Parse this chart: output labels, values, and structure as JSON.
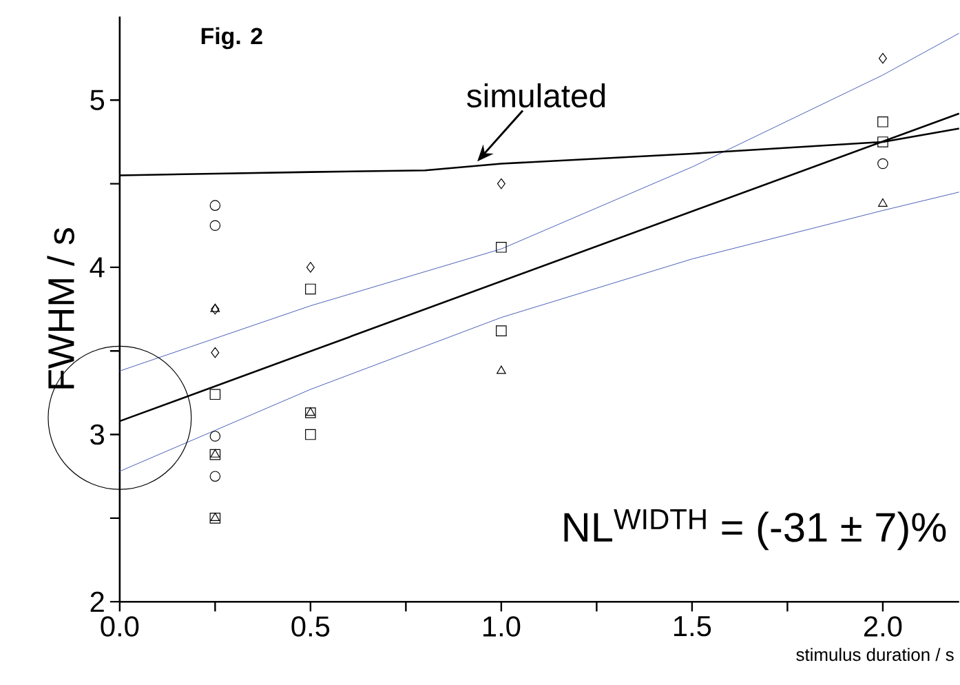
{
  "chart_data": {
    "type": "scatter",
    "title": "Fig. 2",
    "xlabel": "stimulus duration / s",
    "ylabel": "FWHM  / s",
    "xlim": [
      0,
      2.2
    ],
    "ylim": [
      2,
      5.5
    ],
    "xticks": [
      {
        "value": 0,
        "label": "0.0"
      },
      {
        "value": 0.25,
        "label": null
      },
      {
        "value": 0.5,
        "label": "0.5"
      },
      {
        "value": 0.75,
        "label": null
      },
      {
        "value": 1,
        "label": "1.0"
      },
      {
        "value": 1.25,
        "label": null
      },
      {
        "value": 1.5,
        "label": "1.5"
      },
      {
        "value": 1.75,
        "label": null
      },
      {
        "value": 2,
        "label": "2.0"
      }
    ],
    "yticks": [
      2,
      {
        "value": 2.5,
        "label": null
      },
      3,
      {
        "value": 3.5,
        "label": null
      },
      4,
      {
        "value": 4.5,
        "label": null
      },
      5
    ],
    "series": [
      {
        "marker": "circle",
        "color": "#000000",
        "x": [
          0.25,
          0.25,
          0.25,
          0.25,
          2.0
        ],
        "values": [
          4.37,
          4.25,
          2.99,
          2.75,
          4.62
        ]
      },
      {
        "marker": "square",
        "color": "#000000",
        "x": [
          0.25,
          0.25,
          0.25,
          0.5,
          0.5,
          0.5,
          1.0,
          1.0,
          2.0,
          2.0
        ],
        "values": [
          3.24,
          2.88,
          2.5,
          3.87,
          3.13,
          3.0,
          4.12,
          3.62,
          4.87,
          4.75
        ]
      },
      {
        "marker": "diamond",
        "color": "#000000",
        "x": [
          0.25,
          0.25,
          0.5,
          1.0,
          2.0
        ],
        "values": [
          3.75,
          3.49,
          4.0,
          4.5,
          5.25
        ]
      },
      {
        "marker": "triangle",
        "color": "#000000",
        "x": [
          0.25,
          0.25,
          0.25,
          0.5,
          1.0,
          2.0
        ],
        "values": [
          3.75,
          2.88,
          2.5,
          3.13,
          3.38,
          4.38
        ]
      },
      {
        "type": "line",
        "color": "#000000",
        "x": [
          0,
          2.2
        ],
        "values": [
          3.08,
          4.92
        ]
      },
      {
        "type": "line",
        "color": "#4a60b8",
        "x": [
          0,
          0.5,
          1.0,
          1.5,
          2.0,
          2.2
        ],
        "values": [
          3.38,
          3.77,
          4.11,
          4.6,
          5.15,
          5.4
        ]
      },
      {
        "type": "line",
        "color": "#4a60b8",
        "x": [
          0,
          0.5,
          1.0,
          1.5,
          2.0,
          2.2
        ],
        "values": [
          2.78,
          3.27,
          3.7,
          4.05,
          4.34,
          4.45
        ]
      },
      {
        "type": "line",
        "color": "#000000",
        "x": [
          0,
          0.25,
          0.5,
          0.8,
          1.0,
          1.5,
          2.0,
          2.2
        ],
        "values": [
          4.55,
          4.56,
          4.57,
          4.58,
          4.62,
          4.68,
          4.75,
          4.83
        ]
      }
    ],
    "annotations": [
      {
        "text": "simulated",
        "x": 0.93,
        "y": 4.6
      },
      "NL$^{WIDTH}$ = (-31 ± 7)%"
    ]
  }
}
